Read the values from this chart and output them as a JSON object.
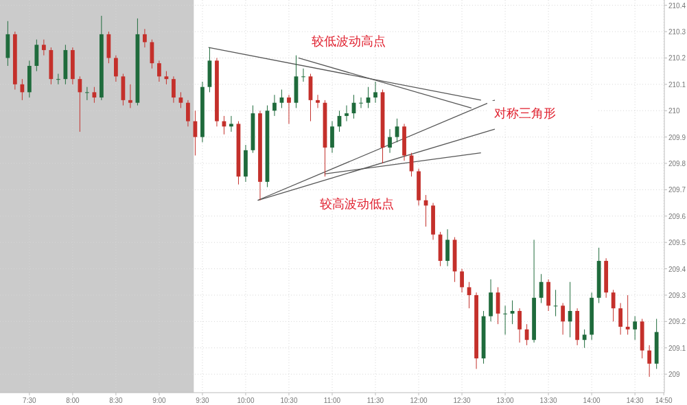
{
  "chart_data": {
    "type": "candlestick",
    "x": [
      7.25,
      7.3333,
      7.4167,
      7.5,
      7.5833,
      7.6667,
      7.75,
      7.8333,
      7.9167,
      8,
      8.0833,
      8.1667,
      8.25,
      8.3333,
      8.4167,
      8.5,
      8.5833,
      8.6667,
      8.75,
      8.8333,
      8.9167,
      9,
      9.0833,
      9.1667,
      9.25,
      9.3333,
      9.4167,
      9.5,
      9.5833,
      9.6667,
      9.75,
      9.8333,
      9.9167,
      10,
      10.0833,
      10.1667,
      10.25,
      10.3333,
      10.4167,
      10.5,
      10.5833,
      10.6667,
      10.75,
      10.8333,
      10.9167,
      11,
      11.0833,
      11.1667,
      11.25,
      11.3333,
      11.4167,
      11.5,
      11.5833,
      11.6667,
      11.75,
      11.8333,
      11.9167,
      12,
      12.0833,
      12.1667,
      12.25,
      12.3333,
      12.4167,
      12.5,
      12.5833,
      12.6667,
      12.75,
      12.8333,
      12.9167,
      13,
      13.0833,
      13.1667,
      13.25,
      13.3333,
      13.4167,
      13.5,
      13.5833,
      13.6667,
      13.75,
      13.8333,
      13.9167,
      14,
      14.0833,
      14.1667,
      14.25,
      14.3333,
      14.4167,
      14.5,
      14.5833,
      14.6667,
      14.75
    ],
    "ohlc": [
      [
        210.2,
        210.34,
        210.17,
        210.29
      ],
      [
        210.29,
        210.3,
        210.08,
        210.1
      ],
      [
        210.1,
        210.12,
        210.04,
        210.07
      ],
      [
        210.07,
        210.19,
        210.05,
        210.17
      ],
      [
        210.17,
        210.27,
        210.15,
        210.25
      ],
      [
        210.25,
        210.27,
        210.21,
        210.23
      ],
      [
        210.23,
        210.24,
        210.1,
        210.12
      ],
      [
        210.12,
        210.14,
        210.1,
        210.12
      ],
      [
        210.12,
        210.25,
        210.1,
        210.23
      ],
      [
        210.23,
        210.24,
        210.1,
        210.12
      ],
      [
        210.12,
        210.13,
        209.92,
        210.07
      ],
      [
        210.07,
        210.09,
        210.04,
        210.07
      ],
      [
        210.07,
        210.09,
        210.03,
        210.05
      ],
      [
        210.05,
        210.36,
        210.04,
        210.29
      ],
      [
        210.29,
        210.3,
        210.18,
        210.2
      ],
      [
        210.2,
        210.21,
        210.11,
        210.13
      ],
      [
        210.13,
        210.14,
        210.02,
        210.04
      ],
      [
        210.04,
        210.1,
        210.01,
        210.03
      ],
      [
        210.03,
        210.35,
        210.02,
        210.29
      ],
      [
        210.29,
        210.31,
        210.24,
        210.26
      ],
      [
        210.26,
        210.27,
        210.16,
        210.18
      ],
      [
        210.18,
        210.19,
        210.11,
        210.13
      ],
      [
        210.13,
        210.15,
        210.1,
        210.12
      ],
      [
        210.12,
        210.13,
        210.03,
        210.05
      ],
      [
        210.05,
        210.07,
        210.01,
        210.03
      ],
      [
        210.03,
        210.04,
        209.94,
        209.96
      ],
      [
        209.96,
        210.0,
        209.83,
        209.9
      ],
      [
        209.9,
        210.11,
        209.88,
        210.09
      ],
      [
        210.09,
        210.24,
        210.07,
        210.19
      ],
      [
        210.19,
        210.2,
        209.94,
        209.96
      ],
      [
        209.96,
        209.98,
        209.91,
        209.94
      ],
      [
        209.94,
        209.98,
        209.92,
        209.95
      ],
      [
        209.95,
        209.96,
        209.72,
        209.75
      ],
      [
        209.75,
        209.87,
        209.73,
        209.85
      ],
      [
        209.85,
        210.02,
        209.84,
        209.99
      ],
      [
        209.99,
        210.0,
        209.66,
        209.73
      ],
      [
        209.73,
        210.02,
        209.71,
        210.0
      ],
      [
        210.0,
        210.06,
        209.98,
        210.03
      ],
      [
        210.03,
        210.08,
        210.01,
        210.05
      ],
      [
        210.05,
        210.06,
        209.95,
        210.03
      ],
      [
        210.03,
        210.21,
        210.01,
        210.13
      ],
      [
        210.13,
        210.16,
        210.11,
        210.13
      ],
      [
        210.13,
        210.14,
        209.96,
        210.04
      ],
      [
        210.04,
        210.06,
        210.01,
        210.03
      ],
      [
        210.03,
        210.04,
        209.75,
        209.86
      ],
      [
        209.86,
        209.96,
        209.84,
        209.94
      ],
      [
        209.94,
        210.0,
        209.92,
        209.98
      ],
      [
        209.98,
        210.02,
        209.96,
        209.99
      ],
      [
        209.99,
        210.06,
        209.97,
        210.03
      ],
      [
        210.03,
        210.05,
        210.01,
        210.03
      ],
      [
        210.03,
        210.09,
        210.01,
        210.05
      ],
      [
        210.05,
        210.11,
        210.03,
        210.07
      ],
      [
        210.07,
        210.08,
        209.8,
        209.86
      ],
      [
        209.86,
        209.93,
        209.84,
        209.9
      ],
      [
        209.9,
        209.97,
        209.88,
        209.94
      ],
      [
        209.94,
        209.95,
        209.81,
        209.83
      ],
      [
        209.83,
        209.84,
        209.75,
        209.77
      ],
      [
        209.77,
        209.78,
        209.64,
        209.66
      ],
      [
        209.66,
        209.68,
        209.56,
        209.64
      ],
      [
        209.64,
        209.65,
        209.51,
        209.53
      ],
      [
        209.53,
        209.54,
        209.41,
        209.43
      ],
      [
        209.43,
        209.55,
        209.41,
        209.51
      ],
      [
        209.51,
        209.52,
        209.35,
        209.39
      ],
      [
        209.39,
        209.4,
        209.31,
        209.33
      ],
      [
        209.33,
        209.35,
        209.25,
        209.3
      ],
      [
        209.3,
        209.31,
        209.02,
        209.06
      ],
      [
        209.06,
        209.24,
        209.04,
        209.22
      ],
      [
        209.22,
        209.36,
        209.2,
        209.31
      ],
      [
        209.31,
        209.33,
        209.19,
        209.23
      ],
      [
        209.23,
        209.26,
        209.15,
        209.23
      ],
      [
        209.23,
        209.28,
        209.19,
        209.24
      ],
      [
        209.24,
        209.25,
        209.12,
        209.17
      ],
      [
        209.17,
        209.19,
        209.11,
        209.13
      ],
      [
        209.13,
        209.51,
        209.12,
        209.29
      ],
      [
        209.29,
        209.38,
        209.27,
        209.35
      ],
      [
        209.35,
        209.36,
        209.24,
        209.26
      ],
      [
        209.26,
        209.32,
        209.22,
        209.26
      ],
      [
        209.26,
        209.27,
        209.15,
        209.2
      ],
      [
        209.2,
        209.35,
        209.14,
        209.24
      ],
      [
        209.24,
        209.25,
        209.11,
        209.13
      ],
      [
        209.13,
        209.17,
        209.1,
        209.15
      ],
      [
        209.15,
        209.31,
        209.13,
        209.29
      ],
      [
        209.29,
        209.48,
        209.27,
        209.43
      ],
      [
        209.43,
        209.44,
        209.29,
        209.31
      ],
      [
        209.31,
        209.32,
        209.2,
        209.25
      ],
      [
        209.25,
        209.27,
        209.15,
        209.18
      ],
      [
        209.18,
        209.3,
        209.15,
        209.17
      ],
      [
        209.17,
        209.22,
        209.13,
        209.2
      ],
      [
        209.2,
        209.21,
        209.06,
        209.09
      ],
      [
        209.09,
        209.11,
        208.99,
        209.04
      ],
      [
        209.04,
        209.21,
        209.02,
        209.16
      ]
    ],
    "series": [
      {
        "type": "line",
        "color": "#555555",
        "x": [
          9.57,
          12.72
        ],
        "values": [
          210.24,
          210.04
        ]
      },
      {
        "type": "line",
        "color": "#555555",
        "x": [
          10.61,
          12.61
        ],
        "values": [
          210.2,
          210.01
        ]
      },
      {
        "type": "line",
        "color": "#555555",
        "x": [
          10.14,
          12.88
        ],
        "values": [
          209.66,
          210.04
        ]
      },
      {
        "type": "line",
        "color": "#555555",
        "x": [
          10.14,
          12.88
        ],
        "values": [
          209.66,
          209.93
        ]
      },
      {
        "type": "line",
        "color": "#555555",
        "x": [
          10.91,
          12.72
        ],
        "values": [
          209.76,
          209.84
        ]
      }
    ],
    "bands": [
      {
        "axis": "x",
        "from": 7.16,
        "to": 9.4,
        "color": "#cbcbcb"
      }
    ],
    "annotations": [
      "较低波动高点",
      "较高波动低点",
      "对称三角形"
    ],
    "xlim": [
      7.16,
      14.84
    ],
    "xticks": [
      {
        "value": 7.5,
        "label": "7:30"
      },
      {
        "value": 8,
        "label": "8:00"
      },
      {
        "value": 8.5,
        "label": "8:30"
      },
      {
        "value": 9,
        "label": "9:00"
      },
      {
        "value": 9.5,
        "label": "9:30"
      },
      {
        "value": 10,
        "label": "10:00"
      },
      {
        "value": 10.5,
        "label": "10:30"
      },
      {
        "value": 11,
        "label": "11:00"
      },
      {
        "value": 11.5,
        "label": "11:30"
      },
      {
        "value": 12,
        "label": "12:00"
      },
      {
        "value": 12.5,
        "label": "12:30"
      },
      {
        "value": 13,
        "label": "13:00"
      },
      {
        "value": 13.5,
        "label": "13:30"
      },
      {
        "value": 14,
        "label": "14:00"
      },
      {
        "value": 14.5,
        "label": "14:30"
      },
      {
        "value": 14.8333,
        "label": "14:50"
      }
    ],
    "ylim": [
      208.93,
      210.42
    ],
    "yticks": [
      209,
      209.1,
      209.2,
      209.3,
      209.4,
      209.5,
      209.6,
      209.7,
      209.8,
      209.9,
      210,
      210.1,
      210.2,
      210.3,
      210.4
    ],
    "grid": true
  }
}
